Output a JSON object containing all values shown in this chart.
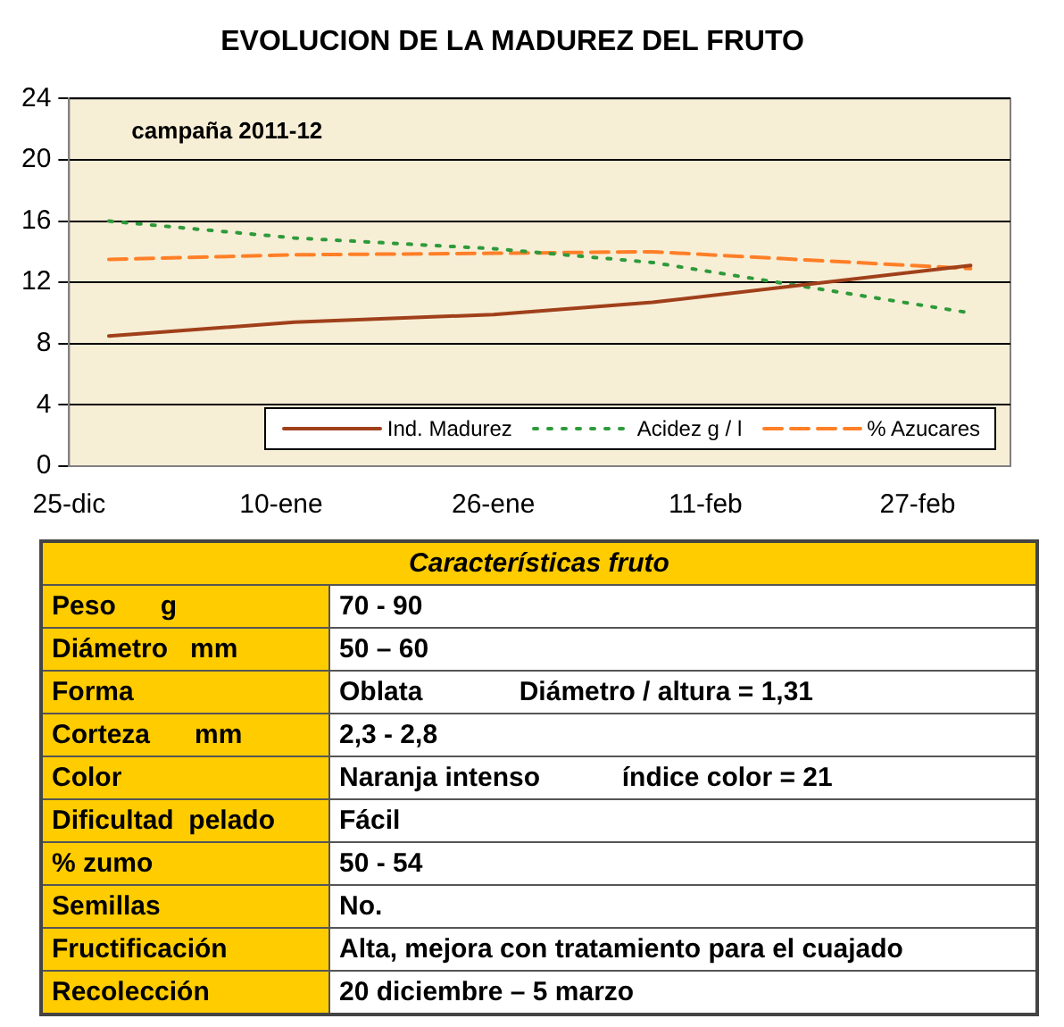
{
  "chart_data": [
    {
      "type": "line",
      "title": "EVOLUCION DE LA MADUREZ DEL FRUTO",
      "annotations": [
        "campaña 2011-12"
      ],
      "x": [
        "2011-12-28",
        "2012-01-11",
        "2012-01-26",
        "2012-02-07",
        "2012-03-02"
      ],
      "series": [
        {
          "name": "Ind. Madurez",
          "color": "#a0401a",
          "line_style": "solid",
          "values": [
            8.5,
            9.4,
            9.9,
            10.7,
            13.1
          ]
        },
        {
          "name": "Acidez g / l",
          "color": "#2e9a3a",
          "line_style": "dotted",
          "values": [
            16,
            14.9,
            14.2,
            13.3,
            10
          ]
        },
        {
          "name": "% Azucares",
          "color": "#ff7f27",
          "line_style": "dashed",
          "values": [
            13.5,
            13.8,
            13.9,
            14,
            12.9
          ]
        }
      ],
      "xlim": [
        "2011-12-25",
        "2012-03-05"
      ],
      "xticks": [
        {
          "value": "2011-12-25",
          "label": "25-dic"
        },
        {
          "value": "2012-01-10",
          "label": "10-ene"
        },
        {
          "value": "2012-01-26",
          "label": "26-ene"
        },
        {
          "value": "2012-02-11",
          "label": "11-feb"
        },
        {
          "value": "2012-02-27",
          "label": "27-feb"
        }
      ],
      "ylim": [
        0,
        24
      ],
      "yticks": [
        0,
        4,
        8,
        12,
        16,
        20,
        24
      ],
      "grid": "y",
      "legend": "bottom right",
      "marker": "none"
    },
    {
      "type": "other",
      "title": "Características fruto",
      "categories": [
        "Peso      g",
        "Diámetro   mm",
        "Forma",
        "Corteza      mm",
        "Color",
        "Dificultad  pelado",
        "% zumo",
        "Semillas",
        "Fructificación",
        "Recolección"
      ],
      "annotations": [
        "70 - 90",
        "50 – 60",
        "Oblata             Diámetro / altura = 1,31",
        "2,3 - 2,8",
        "Naranja intenso           índice color = 21",
        "Fácil",
        "50 - 54",
        "No.",
        "Alta, mejora con tratamiento para el cuajado",
        "20 diciembre – 5 marzo"
      ]
    }
  ]
}
